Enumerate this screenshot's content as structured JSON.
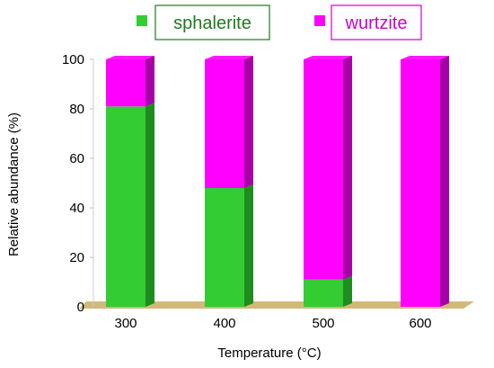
{
  "chart_data": {
    "type": "bar",
    "stacked": true,
    "style": "3d-column",
    "categories": [
      "300",
      "400",
      "500",
      "600"
    ],
    "series": [
      {
        "name": "sphalerite",
        "values": [
          81,
          48,
          11,
          0
        ],
        "color": "#33cc33",
        "side_color": "#1f8c1f"
      },
      {
        "name": "wurtzite",
        "values": [
          19,
          52,
          89,
          100
        ],
        "color": "#ff00ff",
        "side_color": "#a600a6"
      }
    ],
    "xlabel": "Temperature (°C)",
    "ylabel": "Relative abundance (%)",
    "ylim": [
      0,
      100
    ],
    "yticks": [
      "0",
      "20",
      "40",
      "60",
      "80",
      "100"
    ],
    "grid": false,
    "legend_position": "top",
    "floor_color": "#d2b97a",
    "legend_border_colors": [
      "#1f7a1f",
      "#cc00cc"
    ],
    "legend_text_colors": [
      "#1f7a1f",
      "#cc00cc"
    ]
  }
}
